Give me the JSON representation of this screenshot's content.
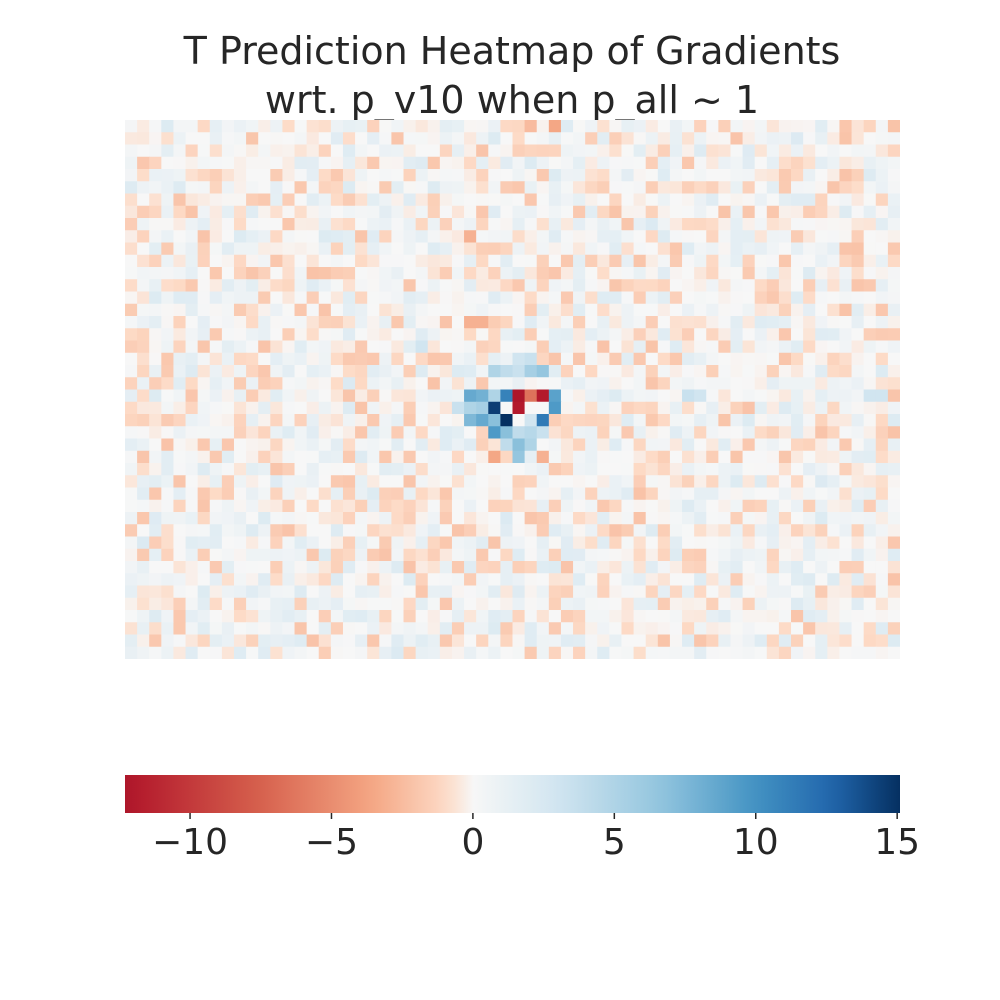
{
  "title_lines": [
    "T Prediction Heatmap of Gradients",
    "wrt. p_v10 when p_all ~ 1"
  ],
  "colors": {
    "cmap": "RdBu",
    "low": "#b2182b",
    "mid": "#f7f7f7",
    "high": "#053061"
  },
  "chart_data": {
    "type": "heatmap",
    "title": "T Prediction Heatmap of Gradients wrt. p_v10 when p_all ~ 1",
    "xlabel": "",
    "ylabel": "",
    "grid": false,
    "axes_visible": false,
    "colorbar": {
      "orientation": "horizontal",
      "placement": "bottom",
      "range": [
        -12.3,
        15.1
      ],
      "ticks": [
        -10,
        -5,
        0,
        5,
        10,
        15
      ],
      "tick_labels": [
        "−10",
        "−5",
        "0",
        "5",
        "10",
        "15"
      ]
    },
    "n_rows": 44,
    "n_cols": 64,
    "background_value_range": [
      -2.5,
      2.5
    ],
    "highlighted_cells": [
      {
        "row": 22,
        "col": 32,
        "value": -12.3
      },
      {
        "row": 22,
        "col": 34,
        "value": -12.0
      },
      {
        "row": 22,
        "col": 33,
        "value": -6.5
      },
      {
        "row": 22,
        "col": 28,
        "value": 8.5
      },
      {
        "row": 22,
        "col": 29,
        "value": 8.0
      },
      {
        "row": 22,
        "col": 30,
        "value": 5.0
      },
      {
        "row": 22,
        "col": 31,
        "value": 11.0
      },
      {
        "row": 22,
        "col": 35,
        "value": 9.0
      },
      {
        "row": 23,
        "col": 30,
        "value": 14.5
      },
      {
        "row": 23,
        "col": 32,
        "value": -12.0
      },
      {
        "row": 23,
        "col": 33,
        "value": 0.0
      },
      {
        "row": 23,
        "col": 34,
        "value": 0.0
      },
      {
        "row": 23,
        "col": 35,
        "value": 9.5
      },
      {
        "row": 23,
        "col": 28,
        "value": 5.0
      },
      {
        "row": 23,
        "col": 29,
        "value": 5.5
      },
      {
        "row": 23,
        "col": 27,
        "value": 3.5
      },
      {
        "row": 24,
        "col": 31,
        "value": 15.1
      },
      {
        "row": 24,
        "col": 34,
        "value": 11.5
      },
      {
        "row": 24,
        "col": 28,
        "value": 7.5
      },
      {
        "row": 24,
        "col": 29,
        "value": 8.5
      },
      {
        "row": 24,
        "col": 30,
        "value": 7.0
      },
      {
        "row": 24,
        "col": 32,
        "value": 0.0
      },
      {
        "row": 24,
        "col": 33,
        "value": 3.0
      },
      {
        "row": 25,
        "col": 30,
        "value": 9.5
      },
      {
        "row": 25,
        "col": 31,
        "value": 7.0
      },
      {
        "row": 25,
        "col": 32,
        "value": 4.0
      },
      {
        "row": 25,
        "col": 33,
        "value": 4.5
      },
      {
        "row": 25,
        "col": 34,
        "value": 3.5
      },
      {
        "row": 26,
        "col": 31,
        "value": 4.0
      },
      {
        "row": 26,
        "col": 32,
        "value": 7.0
      },
      {
        "row": 26,
        "col": 33,
        "value": 5.0
      },
      {
        "row": 27,
        "col": 30,
        "value": -3.5
      },
      {
        "row": 27,
        "col": 32,
        "value": 6.5
      },
      {
        "row": 27,
        "col": 34,
        "value": -3.0
      },
      {
        "row": 20,
        "col": 30,
        "value": 5.0
      },
      {
        "row": 20,
        "col": 31,
        "value": 4.0
      },
      {
        "row": 20,
        "col": 32,
        "value": 3.5
      },
      {
        "row": 20,
        "col": 33,
        "value": 5.5
      },
      {
        "row": 20,
        "col": 34,
        "value": 6.5
      },
      {
        "row": 19,
        "col": 32,
        "value": 3.0
      },
      {
        "row": 19,
        "col": 33,
        "value": 3.5
      },
      {
        "row": 16,
        "col": 28,
        "value": -3.0
      },
      {
        "row": 16,
        "col": 29,
        "value": -3.0
      },
      {
        "row": 9,
        "col": 28,
        "value": -3.0
      },
      {
        "row": 0,
        "col": 35,
        "value": -3.5
      },
      {
        "row": 0,
        "col": 33,
        "value": -2.5
      },
      {
        "row": 18,
        "col": 24,
        "value": 3.0
      },
      {
        "row": 22,
        "col": 46,
        "value": 3.5
      },
      {
        "row": 22,
        "col": 47,
        "value": 3.0
      },
      {
        "row": 22,
        "col": 61,
        "value": 3.0
      },
      {
        "row": 22,
        "col": 62,
        "value": 3.0
      }
    ]
  }
}
